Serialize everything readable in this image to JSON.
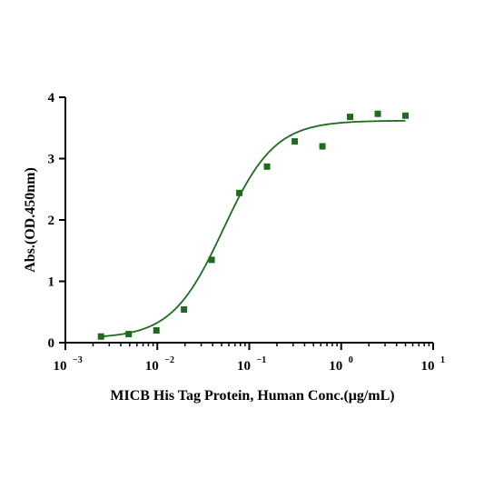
{
  "chart_data": {
    "type": "scatter",
    "title": "",
    "xlabel": "MICB His Tag Protein, Human Conc.(μg/mL)",
    "ylabel": "Abs.(OD.450nm)",
    "x_scale": "log10",
    "xlim": [
      0.001,
      10
    ],
    "ylim": [
      0,
      4
    ],
    "x_ticks": [
      {
        "base": "10",
        "exp": "-3"
      },
      {
        "base": "10",
        "exp": "-2"
      },
      {
        "base": "10",
        "exp": "-1"
      },
      {
        "base": "10",
        "exp": "0"
      },
      {
        "base": "10",
        "exp": "1"
      }
    ],
    "y_ticks": [
      "0",
      "1",
      "2",
      "3",
      "4"
    ],
    "grid": false,
    "series": [
      {
        "color": "#1e6b1e",
        "marker": "square",
        "points": [
          {
            "x": 0.00244,
            "y": 0.1
          },
          {
            "x": 0.00488,
            "y": 0.14
          },
          {
            "x": 0.00977,
            "y": 0.2
          },
          {
            "x": 0.0195,
            "y": 0.54
          },
          {
            "x": 0.039,
            "y": 1.35
          },
          {
            "x": 0.078,
            "y": 2.44
          },
          {
            "x": 0.156,
            "y": 2.87
          },
          {
            "x": 0.3125,
            "y": 3.28
          },
          {
            "x": 0.625,
            "y": 3.2
          },
          {
            "x": 1.25,
            "y": 3.68
          },
          {
            "x": 2.5,
            "y": 3.73
          },
          {
            "x": 5,
            "y": 3.7
          }
        ]
      }
    ],
    "fit_curve": {
      "model": "4PL",
      "bottom": 0.07,
      "top": 3.62,
      "ec50": 0.052,
      "hill": 1.55,
      "color": "#1e6b1e"
    }
  }
}
